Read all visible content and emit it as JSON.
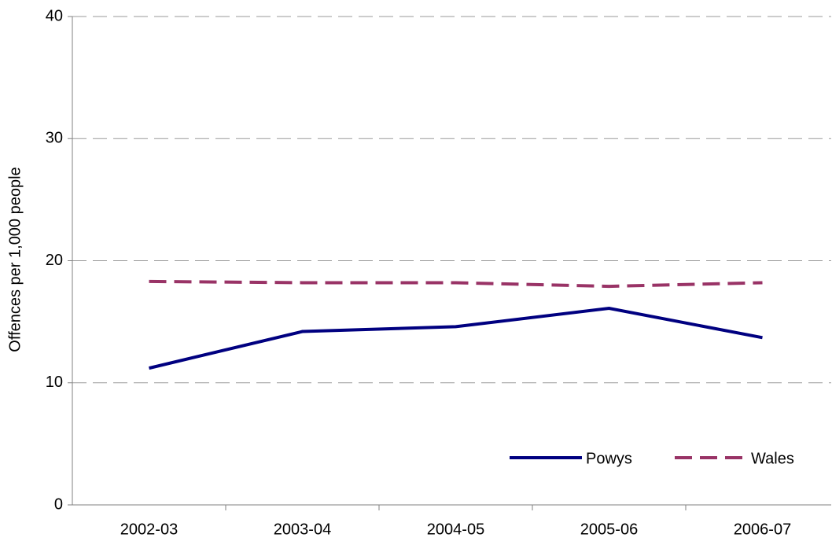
{
  "chart_data": {
    "type": "line",
    "y_label": "Offences per 1,000 people",
    "categories": [
      "2002-03",
      "2003-04",
      "2004-05",
      "2005-06",
      "2006-07"
    ],
    "series": [
      {
        "name": "Powys",
        "color": "#000080",
        "dash": false,
        "values": [
          11.2,
          14.2,
          14.6,
          16.1,
          13.7
        ]
      },
      {
        "name": "Wales",
        "color": "#993366",
        "dash": true,
        "values": [
          18.3,
          18.2,
          18.2,
          17.9,
          18.2
        ]
      }
    ],
    "ylim": [
      0,
      40
    ],
    "yticks": [
      0,
      10,
      20,
      30,
      40
    ],
    "grid": true,
    "legend": "bottom-right"
  }
}
